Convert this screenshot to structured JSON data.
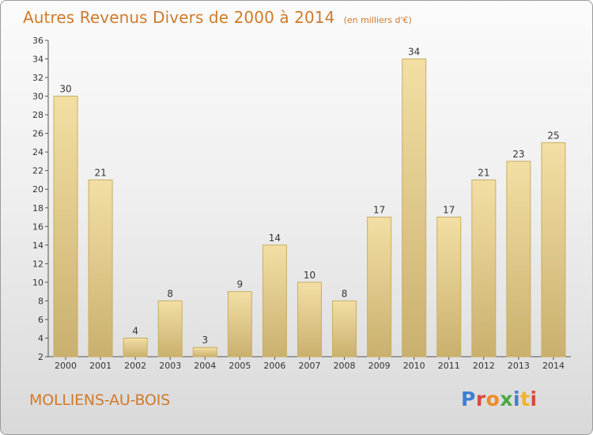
{
  "chart_data": {
    "type": "bar",
    "title": "Autres Revenus Divers de 2000 à 2014",
    "subtitle": "(en milliers d'€)",
    "categories": [
      "2000",
      "2001",
      "2002",
      "2003",
      "2004",
      "2005",
      "2006",
      "2007",
      "2008",
      "2009",
      "2010",
      "2011",
      "2012",
      "2013",
      "2014"
    ],
    "values": [
      30,
      21,
      4,
      8,
      3,
      9,
      14,
      10,
      8,
      17,
      34,
      17,
      21,
      23,
      25
    ],
    "ylim": [
      2,
      36
    ],
    "yticks": [
      2,
      4,
      6,
      8,
      10,
      12,
      14,
      16,
      18,
      20,
      22,
      24,
      26,
      28,
      30,
      32,
      34,
      36
    ],
    "grid": false,
    "bar_color": "#e8cf8c",
    "bar_edge_color": "#c9ad62",
    "accent_color": "#d07a2a"
  },
  "footer": {
    "commune": "MOLLIENS-AU-BOIS",
    "logo": {
      "letters": [
        "P",
        "r",
        "o",
        "x",
        "i",
        "t",
        "i"
      ]
    }
  }
}
